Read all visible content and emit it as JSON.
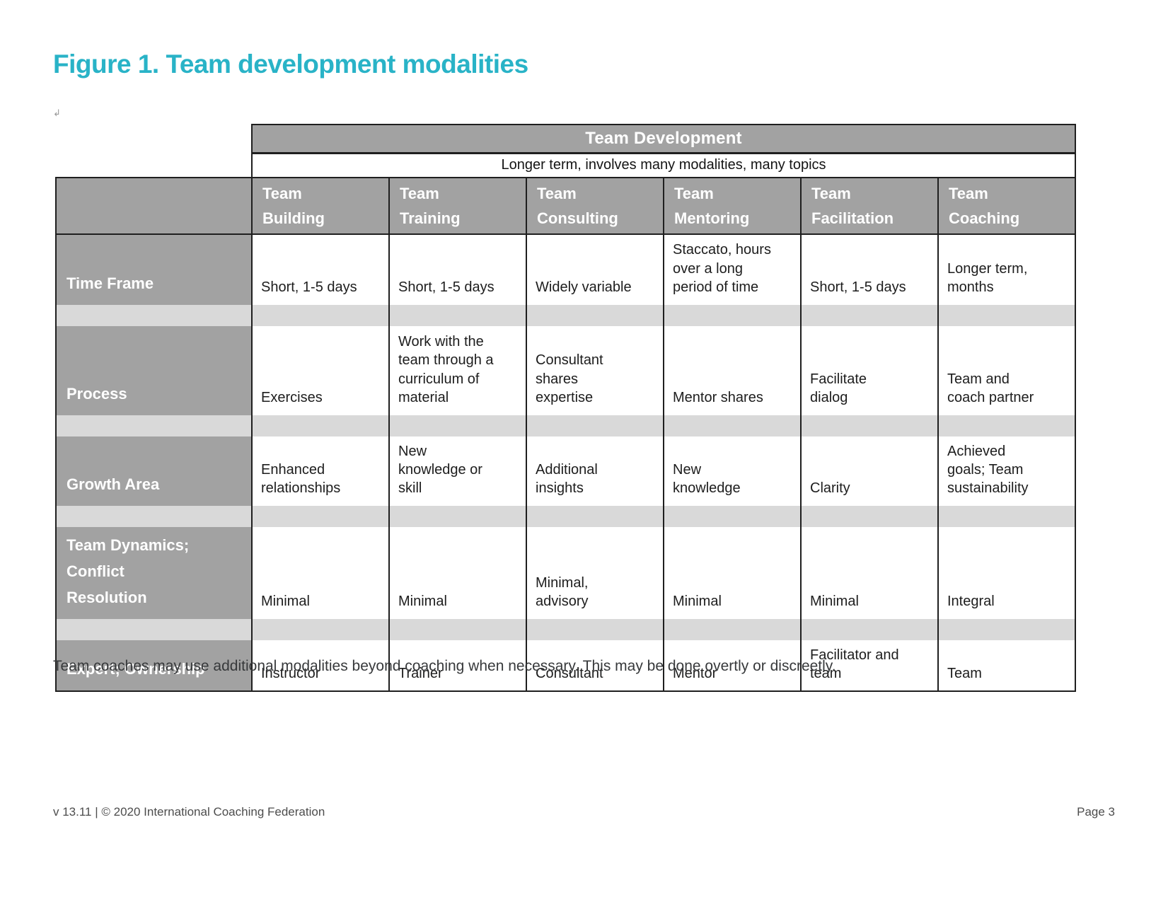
{
  "title": "Figure 1. Team development modalities",
  "paragraph_mark": "↲",
  "table": {
    "header": "Team Development",
    "subheader": "Longer term, involves many modalities, many topics",
    "columns": [
      "Team\nBuilding",
      "Team\nTraining",
      "Team\nConsulting",
      "Team\nMentoring",
      "Team\nFacilitation",
      "Team\nCoaching"
    ],
    "rows": [
      {
        "label": "Time Frame",
        "cells": [
          "Short, 1-5 days",
          "Short, 1-5 days",
          "Widely variable",
          "Staccato, hours\nover a long\nperiod of time",
          "Short, 1-5 days",
          "Longer term,\nmonths"
        ]
      },
      {
        "label": "Process",
        "cells": [
          "Exercises",
          "Work with the\nteam through a\ncurriculum of\nmaterial",
          "Consultant\nshares\nexpertise",
          "Mentor shares",
          "Facilitate\ndialog",
          "Team and\ncoach partner"
        ]
      },
      {
        "label": "Growth Area",
        "cells": [
          "Enhanced\nrelationships",
          "New\nknowledge or\nskill",
          "Additional\ninsights",
          "New\nknowledge",
          "Clarity",
          "Achieved\ngoals; Team\nsustainability"
        ]
      },
      {
        "label": "Team Dynamics;\nConflict\nResolution",
        "cells": [
          "Minimal",
          "Minimal",
          "Minimal,\nadvisory",
          "Minimal",
          "Minimal",
          "Integral"
        ]
      },
      {
        "label": "Expert; Ownership",
        "cells": [
          "Instructor",
          "Trainer",
          "Consultant",
          "Mentor",
          "Facilitator and\nteam",
          "Team"
        ]
      }
    ]
  },
  "note": "Team coaches may use additional modalities beyond coaching when necessary. This may be done overtly or discreetly.",
  "footer": {
    "left": "v 13.11 | © 2020 International Coaching Federation",
    "right": "Page 3"
  },
  "colors": {
    "accent_teal": "#29b3c7",
    "header_gray": "#a2a2a2",
    "spacer_gray": "#d9d9d9",
    "border_black": "#1f1f1f"
  }
}
